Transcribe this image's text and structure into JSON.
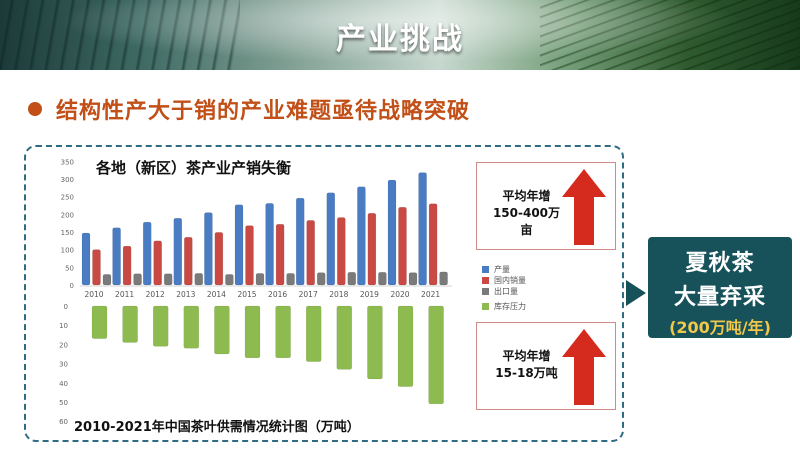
{
  "slide": {
    "title": "产业挑战",
    "headline": "结构性产大于销的产业难题亟待战略突破"
  },
  "callouts": [
    {
      "line1": "平均年增",
      "line2": "150-400万亩"
    },
    {
      "line1": "平均年增",
      "line2": "15-18万吨"
    }
  ],
  "side": {
    "line1": "夏秋茶",
    "line2": "大量弃采",
    "line3": "(200万吨/年)"
  },
  "colors": {
    "production": "#4a7cc4",
    "domestic": "#c94a45",
    "export": "#7a7a7a",
    "pressure": "#8dbb4f",
    "accent": "#c14f17",
    "side_box": "#17525a",
    "arrow_red": "#d42b1e"
  },
  "chart_data": [
    {
      "type": "bar",
      "title": "各地（新区）茶产业产销失衡",
      "categories": [
        "2010",
        "2011",
        "2012",
        "2013",
        "2014",
        "2015",
        "2016",
        "2017",
        "2018",
        "2019",
        "2020",
        "2021"
      ],
      "series": [
        {
          "name": "产量",
          "values": [
            147,
            162,
            178,
            189,
            205,
            227,
            231,
            246,
            261,
            278,
            297,
            318
          ]
        },
        {
          "name": "国内销量",
          "values": [
            100,
            110,
            125,
            135,
            149,
            168,
            172,
            183,
            191,
            203,
            220,
            230
          ]
        },
        {
          "name": "出口量",
          "values": [
            30,
            32,
            32,
            33,
            30,
            33,
            33,
            35,
            36,
            36,
            35,
            37
          ]
        }
      ],
      "yticks": [
        0,
        50,
        100,
        150,
        200,
        250,
        300,
        350
      ],
      "ylim": [
        0,
        350
      ],
      "legend": "right"
    },
    {
      "type": "bar",
      "title": "2010-2021年中国茶叶供需情况统计图（万吨）",
      "categories": [
        "2010",
        "2011",
        "2012",
        "2013",
        "2014",
        "2015",
        "2016",
        "2017",
        "2018",
        "2019",
        "2020",
        "2021"
      ],
      "series": [
        {
          "name": "库存压力",
          "values": [
            17,
            19,
            21,
            22,
            25,
            27,
            27,
            29,
            33,
            38,
            42,
            51
          ]
        }
      ],
      "yticks": [
        0,
        10,
        20,
        30,
        40,
        50,
        60
      ],
      "ylim": [
        0,
        60
      ],
      "inverted": true,
      "legend": "right"
    }
  ]
}
